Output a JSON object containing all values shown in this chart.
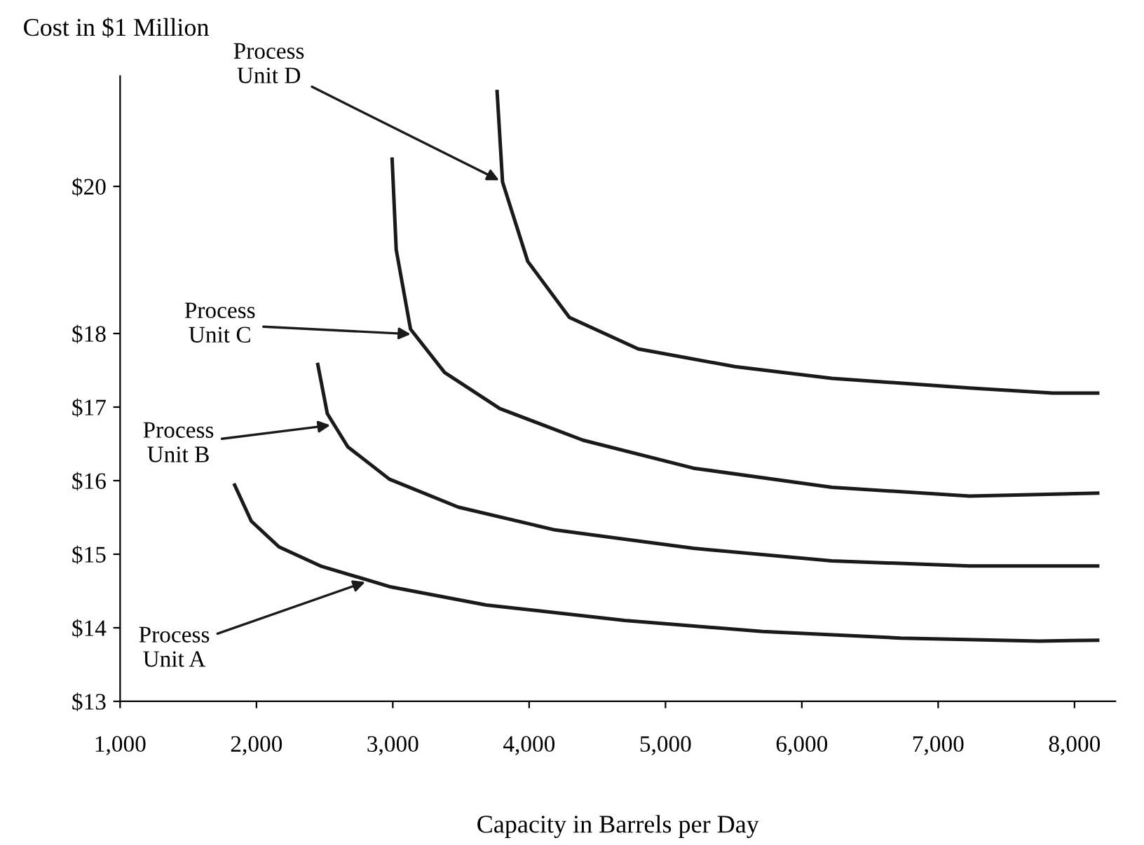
{
  "chart_data": {
    "type": "line",
    "title": "Cost in $1 Million",
    "xlabel": "Capacity in Barrels per Day",
    "series": [
      {
        "color": "#1a1a1a",
        "x": [
          1840,
          1962,
          2165,
          2470,
          2975,
          3685,
          4700,
          5710,
          6725,
          7740,
          8170
        ],
        "values": [
          15.94,
          15.45,
          15.1,
          14.84,
          14.56,
          14.31,
          14.1,
          13.95,
          13.86,
          13.82,
          13.83
        ]
      },
      {
        "color": "#1a1a1a",
        "x": [
          2450,
          2520,
          2670,
          2975,
          3480,
          4190,
          5205,
          6220,
          7230,
          8170
        ],
        "values": [
          17.58,
          16.91,
          16.46,
          16.02,
          15.64,
          15.33,
          15.08,
          14.91,
          14.84,
          14.84
        ]
      },
      {
        "color": "#1a1a1a",
        "x": [
          2995,
          3025,
          3130,
          3380,
          3785,
          4395,
          5205,
          6220,
          7230,
          8170
        ],
        "values": [
          20.37,
          19.14,
          18.06,
          17.47,
          16.98,
          16.55,
          16.17,
          15.91,
          15.79,
          15.83
        ]
      },
      {
        "color": "#1a1a1a",
        "x": [
          3765,
          3805,
          3990,
          4295,
          4800,
          5510,
          6220,
          7230,
          7840,
          8170
        ],
        "values": [
          21.29,
          20.06,
          18.98,
          18.22,
          17.79,
          17.55,
          17.39,
          17.26,
          17.19,
          17.19
        ]
      }
    ],
    "annotations": [
      {
        "text": "Process\nUnit A",
        "x": 2825,
        "y": 14.64
      },
      {
        "text": "Process\nUnit B",
        "x": 2570,
        "y": 16.76
      },
      {
        "text": "Process\nUnit C",
        "x": 3160,
        "y": 17.99
      },
      {
        "text": "Process\nUnit D",
        "x": 3805,
        "y": 20.06
      }
    ],
    "xlim": [
      1000,
      8300
    ],
    "ylim": [
      13,
      21.5
    ],
    "xticks": [
      {
        "value": 1000,
        "label": "1,000"
      },
      {
        "value": 2000,
        "label": "2,000"
      },
      {
        "value": 3000,
        "label": "3,000"
      },
      {
        "value": 4000,
        "label": "4,000"
      },
      {
        "value": 5000,
        "label": "5,000"
      },
      {
        "value": 6000,
        "label": "6,000"
      },
      {
        "value": 7000,
        "label": "7,000"
      },
      {
        "value": 8000,
        "label": "8,000"
      }
    ],
    "yticks": [
      {
        "value": 13,
        "label": "$13"
      },
      {
        "value": 14,
        "label": "$14"
      },
      {
        "value": 15,
        "label": "$15"
      },
      {
        "value": 16,
        "label": "$16"
      },
      {
        "value": 17,
        "label": "$17"
      },
      {
        "value": 18,
        "label": "$18"
      },
      {
        "value": 20,
        "label": "$20"
      }
    ],
    "marker": "none",
    "line_style": "solid",
    "grid": false,
    "legend": false
  }
}
